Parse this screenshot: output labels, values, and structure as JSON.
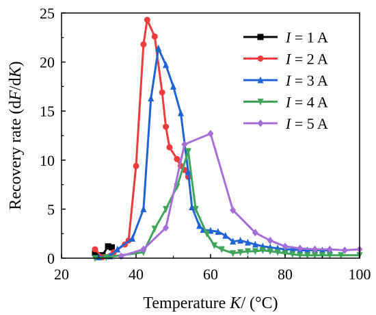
{
  "chart_data": {
    "type": "line",
    "xlabel": {
      "pre": "Temperature ",
      "var": "K",
      "post": "/ (°C)"
    },
    "ylabel": {
      "pre": "Recovery rate (d",
      "var1": "F",
      "mid": "/d",
      "var2": "K",
      "post": ")"
    },
    "xlim": [
      20,
      100
    ],
    "ylim": [
      0,
      25
    ],
    "x_ticks": [
      20,
      40,
      60,
      80,
      100
    ],
    "y_ticks": [
      0,
      5,
      10,
      15,
      20,
      25
    ],
    "grid": false,
    "legend_position": "top-right",
    "series": [
      {
        "name": "1 A",
        "legend_var": "I",
        "legend_eq": " = ",
        "color": "#000000",
        "marker": "square",
        "points": [
          [
            29,
            0.5
          ],
          [
            31,
            0.3
          ],
          [
            32.5,
            1.2
          ],
          [
            33.5,
            1.1
          ]
        ]
      },
      {
        "name": "2 A",
        "legend_var": "I",
        "legend_eq": " = ",
        "color": "#ef3b3b",
        "marker": "circle",
        "points": [
          [
            29,
            0.9
          ],
          [
            31,
            0.1
          ],
          [
            34,
            0.6
          ],
          [
            37,
            1.4
          ],
          [
            38,
            1.8
          ],
          [
            40,
            9.4
          ],
          [
            42,
            21.8
          ],
          [
            43,
            24.3
          ],
          [
            45,
            22.6
          ],
          [
            47,
            16.9
          ],
          [
            48,
            13.4
          ],
          [
            49,
            11.3
          ],
          [
            51,
            10.1
          ],
          [
            52,
            9.4
          ],
          [
            53,
            9.0
          ],
          [
            54,
            8.3
          ]
        ]
      },
      {
        "name": "3 A",
        "legend_var": "I",
        "legend_eq": " = ",
        "color": "#1e63d6",
        "marker": "triangle-up",
        "points": [
          [
            30,
            0.1
          ],
          [
            33,
            0.2
          ],
          [
            35,
            0.9
          ],
          [
            39,
            2.0
          ],
          [
            42,
            5.0
          ],
          [
            44,
            16.3
          ],
          [
            46,
            21.4
          ],
          [
            48,
            19.7
          ],
          [
            50,
            17.5
          ],
          [
            52,
            14.8
          ],
          [
            54,
            8.8
          ],
          [
            55,
            5.2
          ],
          [
            57,
            3.3
          ],
          [
            58,
            2.9
          ],
          [
            60,
            2.8
          ],
          [
            62,
            2.7
          ],
          [
            64,
            2.3
          ],
          [
            66,
            1.7
          ],
          [
            68,
            1.8
          ],
          [
            70,
            1.6
          ],
          [
            72,
            1.4
          ],
          [
            74,
            1.2
          ],
          [
            76,
            1.1
          ],
          [
            78,
            1.0
          ],
          [
            80,
            0.9
          ],
          [
            82,
            0.9
          ],
          [
            84,
            0.8
          ],
          [
            86,
            0.8
          ],
          [
            88,
            0.8
          ],
          [
            90,
            0.8
          ],
          [
            92,
            0.8
          ]
        ]
      },
      {
        "name": "4 A",
        "legend_var": "I",
        "legend_eq": " = ",
        "color": "#3ea55a",
        "marker": "triangle-down",
        "points": [
          [
            29,
            0.0
          ],
          [
            32,
            0.1
          ],
          [
            42,
            0.6
          ],
          [
            45,
            3.0
          ],
          [
            48,
            5.0
          ],
          [
            51,
            7.3
          ],
          [
            54,
            10.9
          ],
          [
            56,
            5.0
          ],
          [
            59,
            2.5
          ],
          [
            61,
            1.3
          ],
          [
            63,
            0.9
          ],
          [
            66,
            0.5
          ],
          [
            68,
            0.6
          ],
          [
            70,
            0.7
          ],
          [
            72,
            0.7
          ],
          [
            74,
            0.8
          ],
          [
            76,
            0.7
          ],
          [
            78,
            0.6
          ],
          [
            80,
            0.5
          ],
          [
            82,
            0.4
          ],
          [
            84,
            0.3
          ],
          [
            86,
            0.3
          ],
          [
            88,
            0.3
          ],
          [
            90,
            0.3
          ],
          [
            92,
            0.3
          ],
          [
            95,
            0.3
          ],
          [
            100,
            0.3
          ]
        ]
      },
      {
        "name": "5 A",
        "legend_var": "I",
        "legend_eq": " = ",
        "color": "#a66ed8",
        "marker": "diamond",
        "points": [
          [
            36,
            0.2
          ],
          [
            42,
            0.9
          ],
          [
            48,
            3.1
          ],
          [
            53,
            11.6
          ],
          [
            60,
            12.7
          ],
          [
            66,
            4.9
          ],
          [
            72,
            2.6
          ],
          [
            76,
            1.8
          ],
          [
            80,
            1.2
          ],
          [
            84,
            1.0
          ],
          [
            88,
            0.9
          ],
          [
            92,
            0.9
          ],
          [
            96,
            0.8
          ],
          [
            100,
            0.9
          ]
        ]
      }
    ]
  }
}
